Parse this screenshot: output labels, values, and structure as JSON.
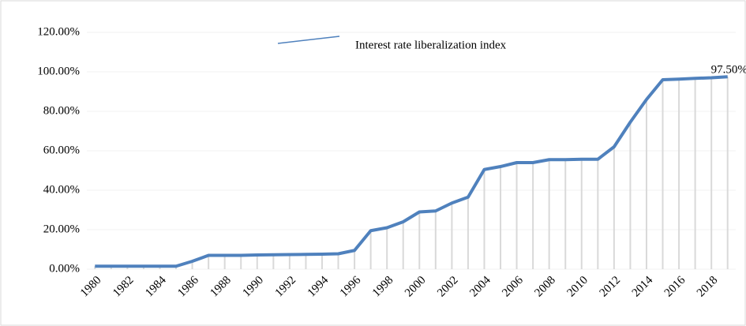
{
  "chart_data": {
    "type": "line",
    "categories": [
      "1980",
      null,
      "1982",
      null,
      "1984",
      null,
      "1986",
      null,
      "1988",
      null,
      "1990",
      null,
      "1992",
      null,
      "1994",
      null,
      "1996",
      null,
      "1998",
      null,
      "2000",
      null,
      "2002",
      null,
      "2004",
      null,
      "2006",
      null,
      "2008",
      null,
      "2010",
      null,
      "2012",
      null,
      "2014",
      null,
      "2016",
      null,
      "2018",
      null
    ],
    "series": [
      {
        "name": "Interest rate liberalization index",
        "color": "#4f81bd",
        "values": [
          1.5,
          1.5,
          1.5,
          1.5,
          1.5,
          1.5,
          4,
          7,
          7,
          7,
          7.2,
          7.3,
          7.4,
          7.5,
          7.6,
          7.8,
          9.5,
          19.5,
          21,
          24,
          29,
          29.5,
          33.5,
          36.5,
          50.5,
          52,
          54,
          54,
          55.5,
          55.5,
          55.7,
          55.7,
          62,
          74.5,
          86,
          96,
          96.3,
          96.7,
          97,
          97.5
        ],
        "value_labels": [
          null,
          null,
          null,
          null,
          null,
          null,
          null,
          null,
          null,
          null,
          null,
          null,
          null,
          null,
          null,
          null,
          null,
          null,
          null,
          null,
          null,
          null,
          null,
          null,
          null,
          null,
          null,
          null,
          null,
          null,
          null,
          null,
          null,
          null,
          null,
          null,
          null,
          null,
          null,
          "97.50%"
        ]
      }
    ],
    "ylim": [
      0,
      120
    ],
    "yticks": [
      {
        "value": 0,
        "label": "0.00%"
      },
      {
        "value": 20,
        "label": "20.00%"
      },
      {
        "value": 40,
        "label": "40.00%"
      },
      {
        "value": 60,
        "label": "60.00%"
      },
      {
        "value": 80,
        "label": "80.00%"
      },
      {
        "value": 100,
        "label": "100.00%"
      },
      {
        "value": 120,
        "label": "120.00%"
      }
    ],
    "grid": true,
    "drop_lines": true,
    "legend": "top"
  }
}
